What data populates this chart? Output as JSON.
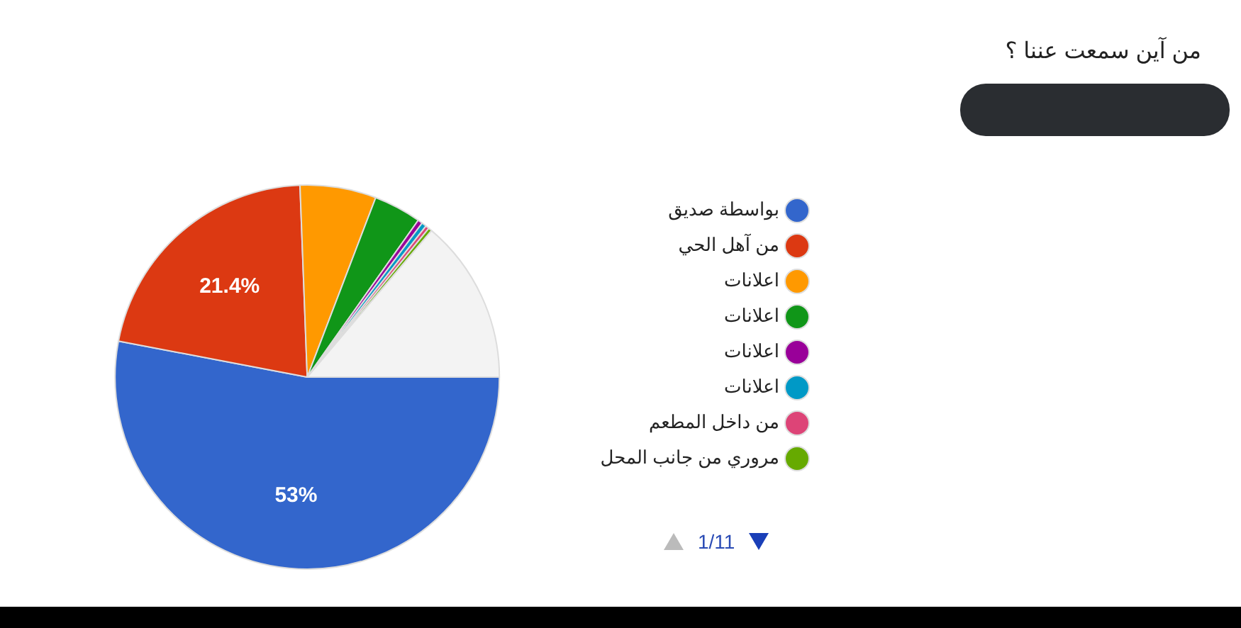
{
  "chart_data": {
    "type": "pie",
    "title": "من آين سمعت عننا ؟",
    "categories": [
      "بواسطة صديق",
      "من آهل الحي",
      "اعلانات",
      "اعلانات",
      "اعلانات",
      "اعلانات",
      "من داخل المطعم",
      "مروري من جانب المحل",
      null
    ],
    "values": [
      53,
      21.4,
      6.4,
      4,
      0.4,
      0.4,
      0.3,
      0.3,
      13.8
    ],
    "colors": [
      "#3366cc",
      "#dc3912",
      "#ff9900",
      "#109618",
      "#990099",
      "#0099c6",
      "#dd4477",
      "#66aa00",
      "#f3f3f3"
    ],
    "value_labels": [
      "53%",
      "21.4%",
      null,
      null,
      null,
      null,
      null,
      null,
      null
    ],
    "legend": "right",
    "annotations": [
      "1/11"
    ]
  }
}
